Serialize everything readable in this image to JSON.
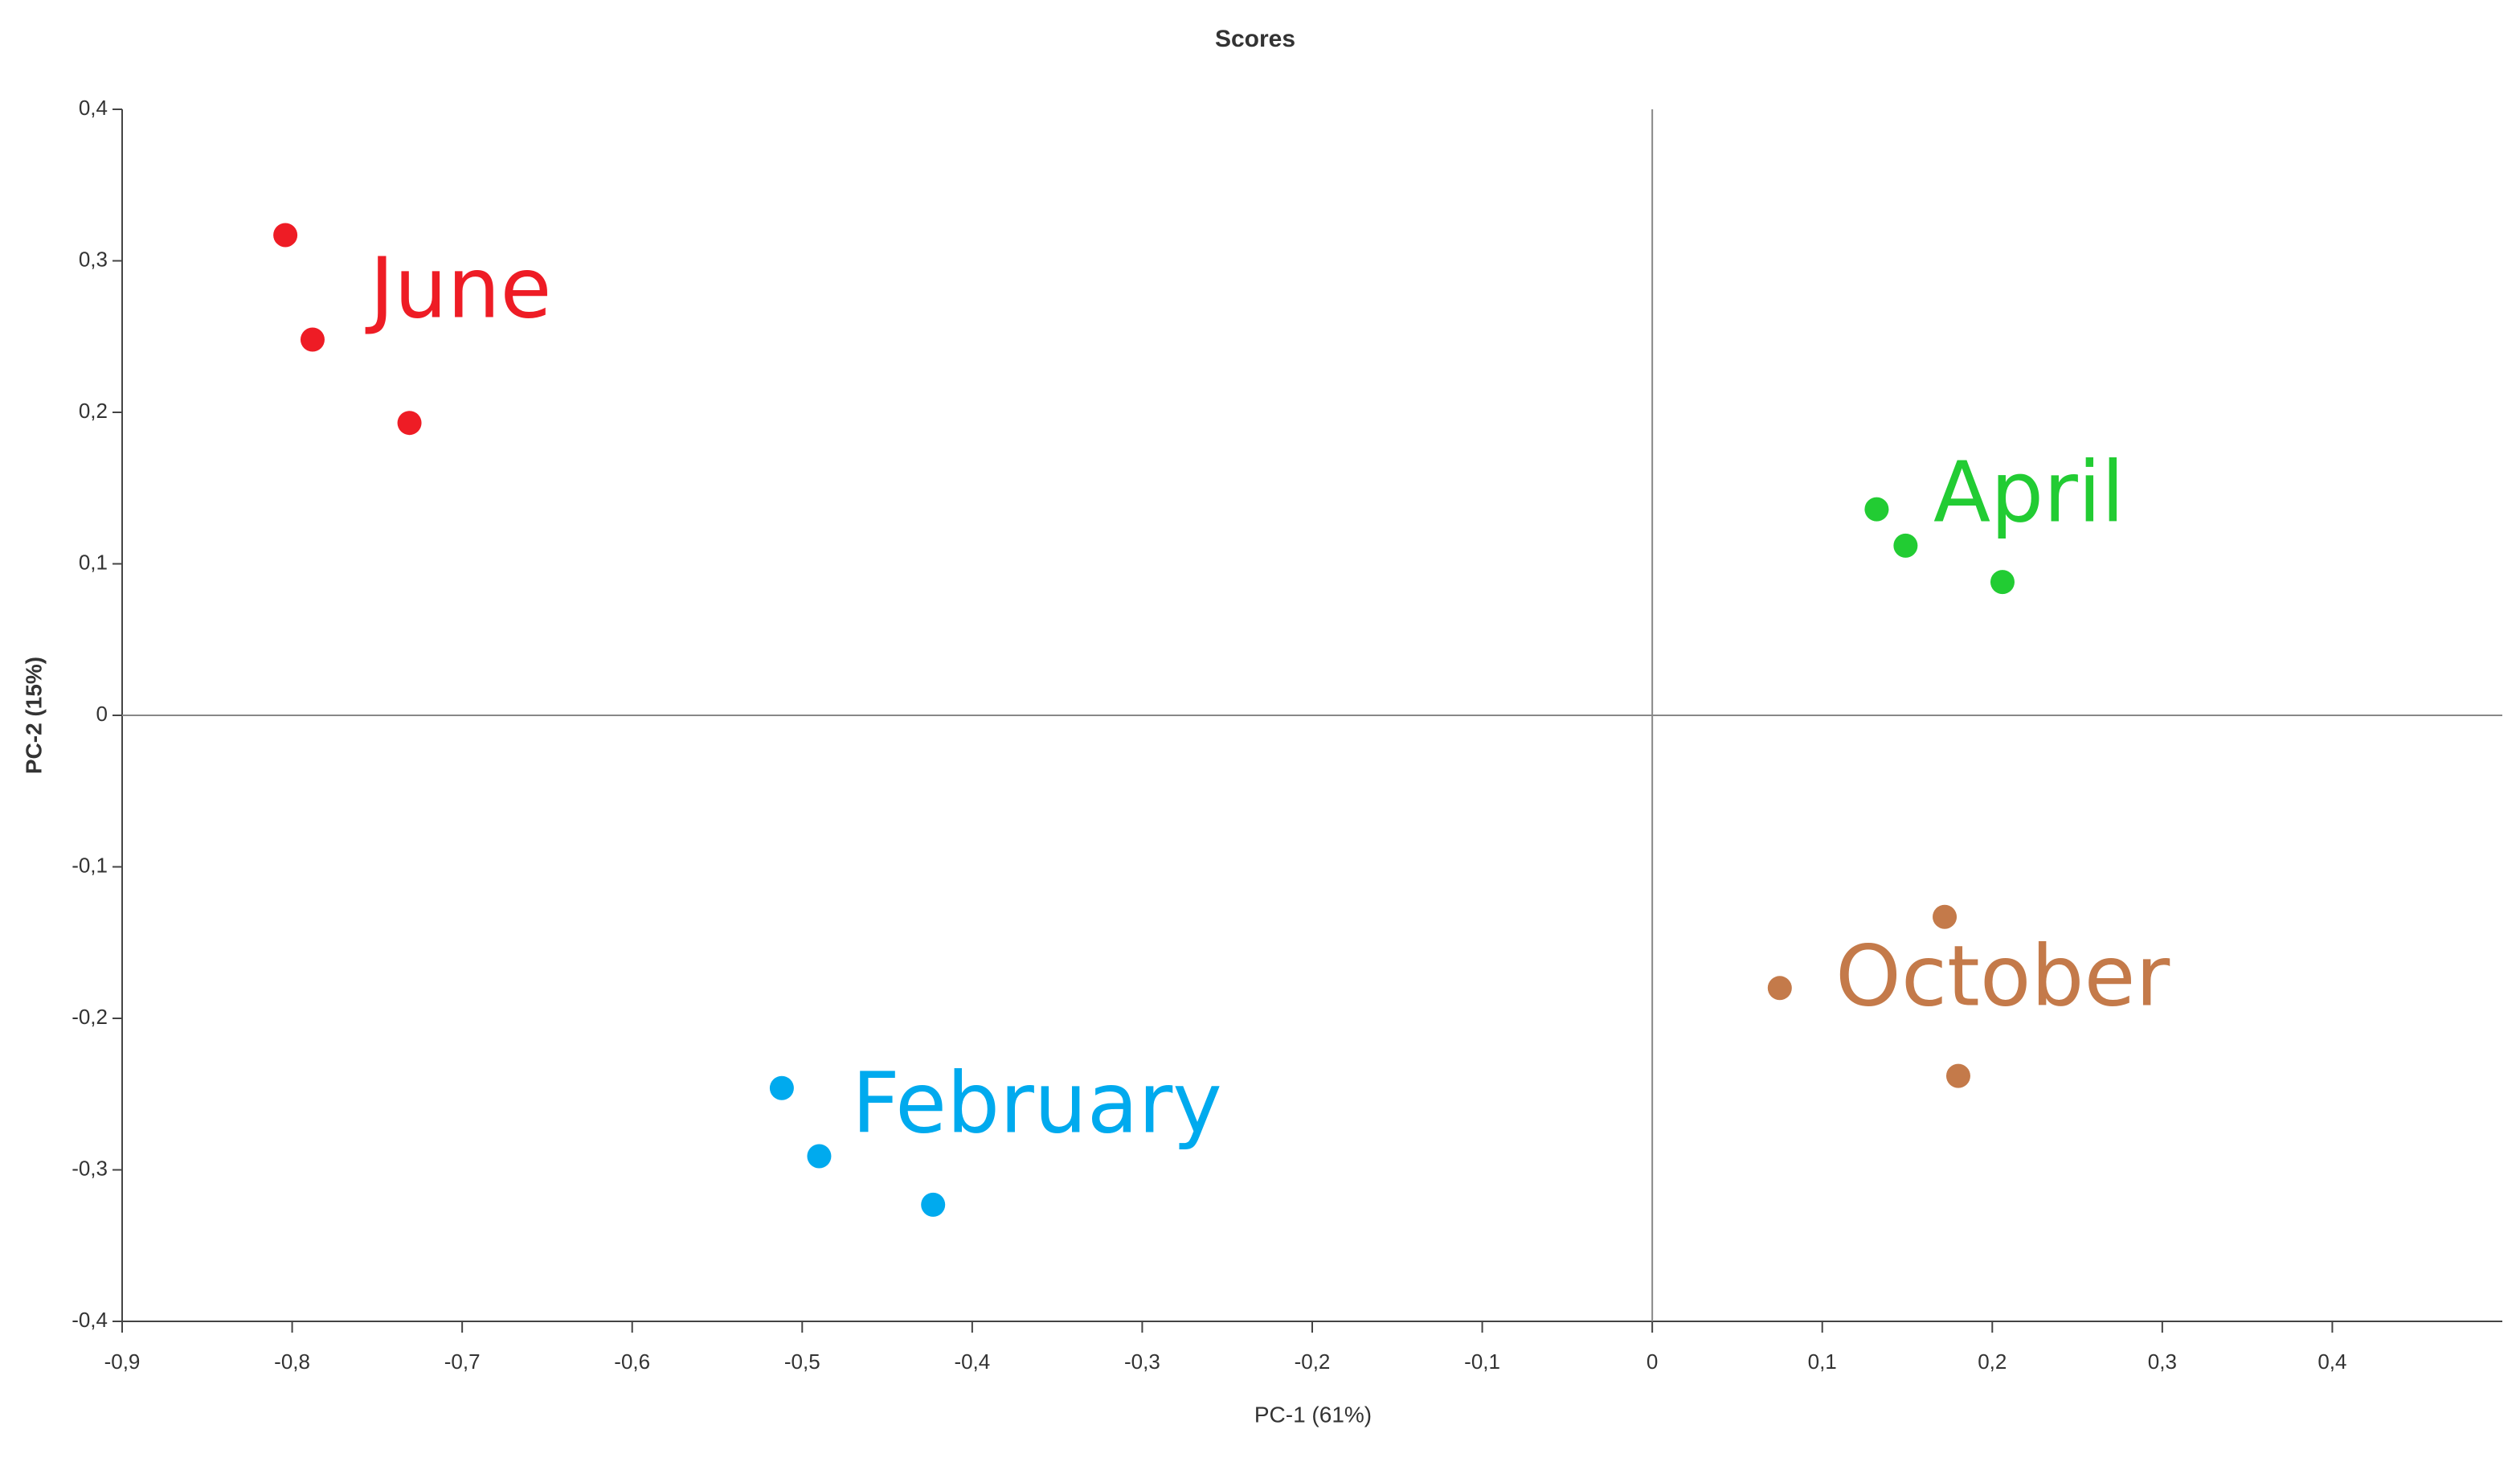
{
  "chart_data": {
    "type": "scatter",
    "title": "Scores",
    "x_label": "PC-1 (61%)",
    "y_label": "PC-2 (15%)",
    "xlim": [
      -0.9,
      0.5
    ],
    "ylim": [
      -0.4,
      0.4
    ],
    "xticks": [
      {
        "value": -0.9,
        "label": "-0,9"
      },
      {
        "value": -0.8,
        "label": "-0,8"
      },
      {
        "value": -0.7,
        "label": "-0,7"
      },
      {
        "value": -0.6,
        "label": "-0,6"
      },
      {
        "value": -0.5,
        "label": "-0,5"
      },
      {
        "value": -0.4,
        "label": "-0,4"
      },
      {
        "value": -0.3,
        "label": "-0,3"
      },
      {
        "value": -0.2,
        "label": "-0,2"
      },
      {
        "value": -0.1,
        "label": "-0,1"
      },
      0,
      {
        "value": 0.1,
        "label": "0,1"
      },
      {
        "value": 0.2,
        "label": "0,2"
      },
      {
        "value": 0.3,
        "label": "0,3"
      },
      {
        "value": 0.4,
        "label": "0,4"
      }
    ],
    "yticks": [
      {
        "value": -0.4,
        "label": "-0,4"
      },
      {
        "value": -0.3,
        "label": "-0,3"
      },
      {
        "value": -0.2,
        "label": "-0,2"
      },
      {
        "value": -0.1,
        "label": "-0,1"
      },
      0,
      {
        "value": 0.1,
        "label": "0,1"
      },
      {
        "value": 0.2,
        "label": "0,2"
      },
      {
        "value": 0.3,
        "label": "0,3"
      },
      {
        "value": 0.4,
        "label": "0,4"
      }
    ],
    "series": [
      {
        "name": "June",
        "color": "#ee1c25",
        "x": [
          -0.804,
          -0.788,
          -0.731
        ],
        "values": [
          0.317,
          0.248,
          0.193
        ]
      },
      {
        "name": "April",
        "color": "#22cc33",
        "x": [
          0.132,
          0.149,
          0.206
        ],
        "values": [
          0.136,
          0.112,
          0.088
        ]
      },
      {
        "name": "October",
        "color": "#c47a4a",
        "x": [
          0.172,
          0.075,
          0.18
        ],
        "values": [
          -0.133,
          -0.18,
          -0.238
        ]
      },
      {
        "name": "February",
        "color": "#00aaee",
        "x": [
          -0.512,
          -0.49,
          -0.423
        ],
        "values": [
          -0.246,
          -0.291,
          -0.323
        ]
      }
    ]
  }
}
